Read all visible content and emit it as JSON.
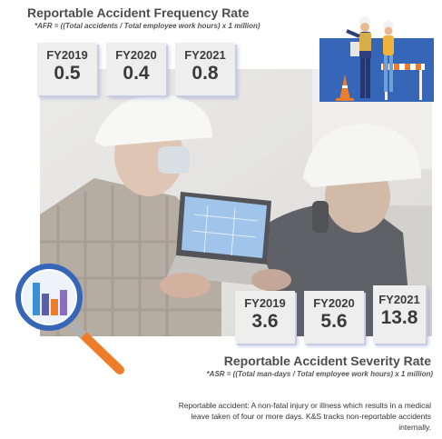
{
  "afr": {
    "title": "Reportable Accident Frequency Rate",
    "formula": "*AFR = ((Total accidents / Total employee work hours) x 1 million)",
    "stats": [
      {
        "year": "FY2019",
        "value": "0.5"
      },
      {
        "year": "FY2020",
        "value": "0.4"
      },
      {
        "year": "FY2021",
        "value": "0.8"
      }
    ]
  },
  "asr": {
    "title": "Reportable Accident Severity Rate",
    "formula": "*ASR = ((Total man-days / Total employee work hours) x 1 million)",
    "stats": [
      {
        "year": "FY2019",
        "value": "3.6"
      },
      {
        "year": "FY2020",
        "value": "5.6"
      },
      {
        "year": "FY2021",
        "value": "13.8"
      }
    ]
  },
  "footnote": "Reportable accident: A non-fatal injury or illness which results in a medical leave taken of four or more days. K&S tracks non-reportable accidents internally.",
  "colors": {
    "accent_blue": "#2f62b3",
    "accent_orange": "#ee7d2a",
    "title_gray": "#4d4d4d"
  },
  "icons": [
    "construction-workers-illustration",
    "magnifier-chart-icon"
  ]
}
